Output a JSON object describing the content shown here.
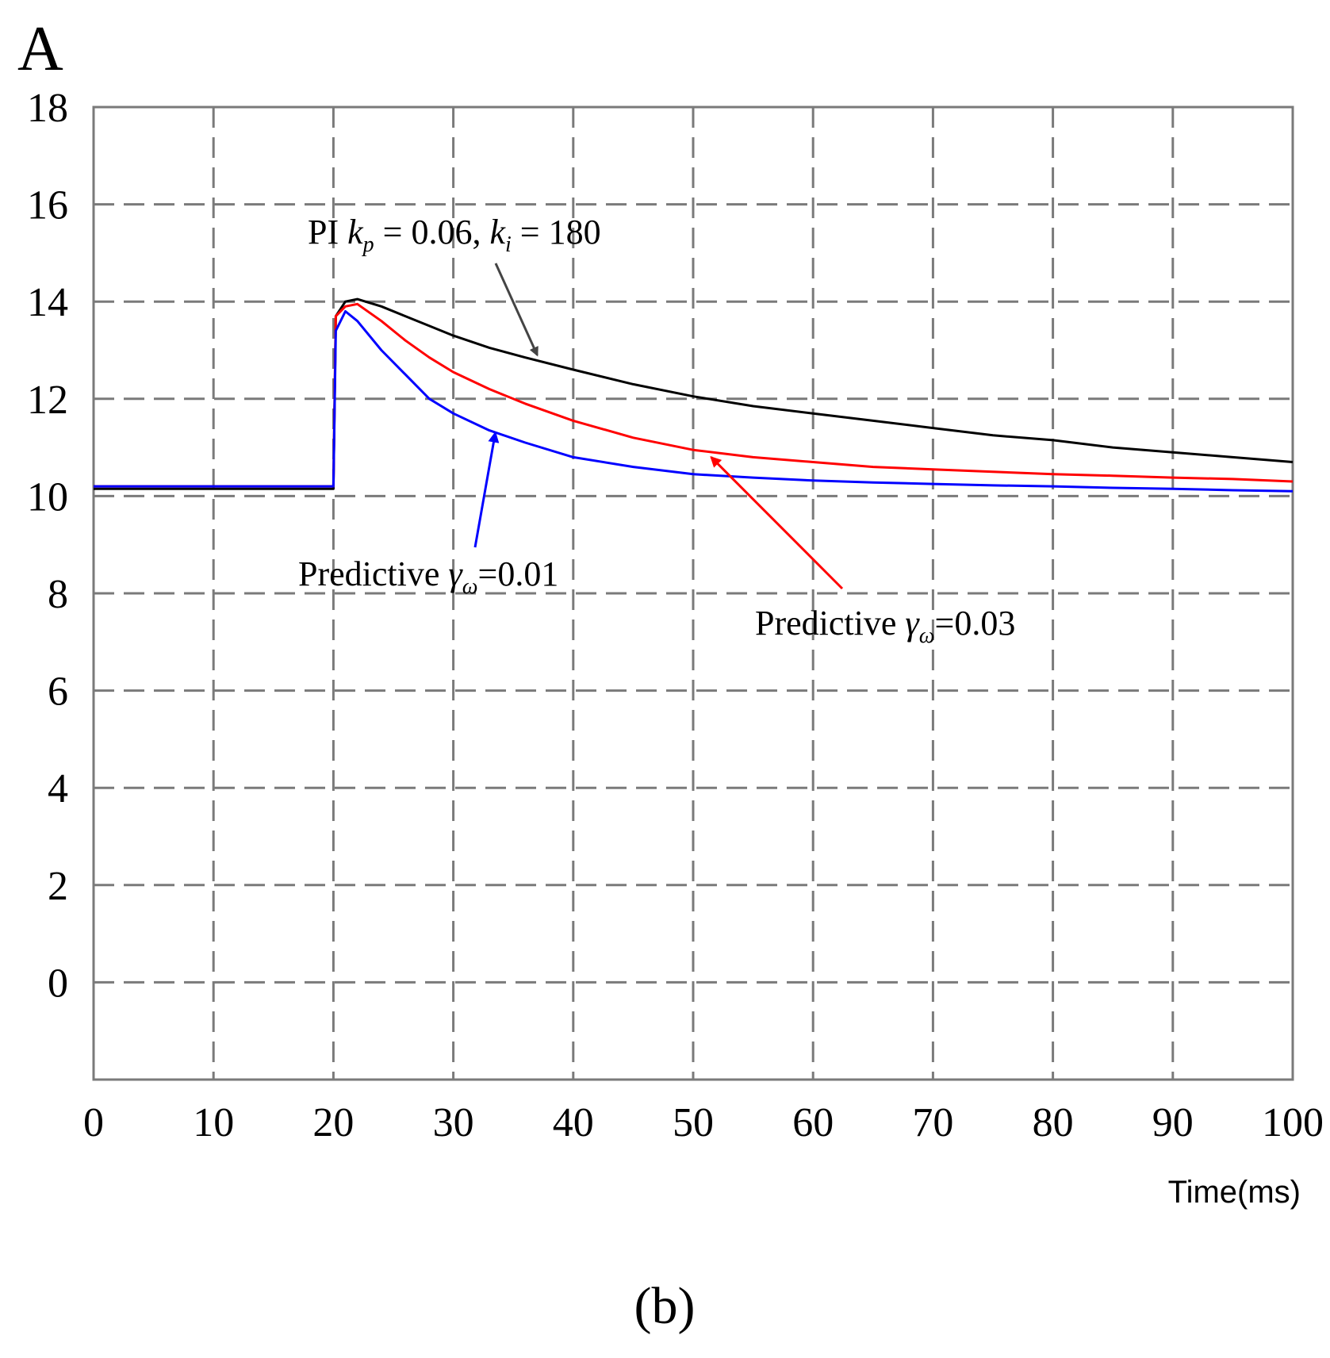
{
  "chart_data": {
    "type": "line",
    "panel_label": "(b)",
    "y_unit_label": "A",
    "xlabel": "Time(ms)",
    "ylabel": "",
    "xlim": [
      0,
      100
    ],
    "ylim": [
      -2,
      18
    ],
    "grid": true,
    "x_ticks": [
      "0",
      "10",
      "20",
      "30",
      "40",
      "50",
      "60",
      "70",
      "80",
      "90",
      "100"
    ],
    "y_ticks": [
      "0",
      "2",
      "4",
      "6",
      "8",
      "10",
      "12",
      "14",
      "16",
      "18"
    ],
    "series": [
      {
        "name": "PI",
        "color": "#000000",
        "x": [
          0,
          20,
          20.2,
          21,
          22,
          24,
          26,
          28,
          30,
          33,
          36,
          40,
          45,
          50,
          55,
          60,
          65,
          70,
          75,
          80,
          85,
          90,
          95,
          100
        ],
        "y": [
          10.15,
          10.15,
          13.7,
          14.0,
          14.05,
          13.9,
          13.7,
          13.5,
          13.3,
          13.05,
          12.85,
          12.6,
          12.3,
          12.05,
          11.85,
          11.7,
          11.55,
          11.4,
          11.25,
          11.15,
          11.0,
          10.9,
          10.8,
          10.7
        ]
      },
      {
        "name": "Predictive γω=0.03",
        "color": "#ff0000",
        "x": [
          0,
          20,
          20.2,
          21,
          22,
          24,
          26,
          28,
          30,
          33,
          36,
          40,
          45,
          50,
          55,
          60,
          65,
          70,
          75,
          80,
          85,
          90,
          95,
          100
        ],
        "y": [
          10.2,
          10.2,
          13.7,
          13.9,
          13.95,
          13.6,
          13.2,
          12.85,
          12.55,
          12.2,
          11.9,
          11.55,
          11.2,
          10.95,
          10.8,
          10.7,
          10.6,
          10.55,
          10.5,
          10.45,
          10.42,
          10.38,
          10.35,
          10.3
        ]
      },
      {
        "name": "Predictive γω=0.01",
        "color": "#0000ff",
        "x": [
          0,
          20,
          20.2,
          21,
          22,
          24,
          26,
          28,
          30,
          33,
          36,
          40,
          45,
          50,
          55,
          60,
          65,
          70,
          75,
          80,
          85,
          90,
          95,
          100
        ],
        "y": [
          10.2,
          10.2,
          13.4,
          13.8,
          13.6,
          13.0,
          12.5,
          12.0,
          11.7,
          11.35,
          11.1,
          10.8,
          10.6,
          10.45,
          10.38,
          10.32,
          10.28,
          10.25,
          10.22,
          10.2,
          10.17,
          10.15,
          10.12,
          10.1
        ]
      }
    ],
    "annotations": {
      "pi": {
        "prefix": "PI ",
        "k": "k",
        "p_sub": "p",
        "middle": " = 0.06, ",
        "i_sub": "i",
        "suffix": " = 180",
        "arrow_color": "#444444",
        "arrow_tip": [
          37,
          12.9
        ]
      },
      "pred001": {
        "prefix": "Predictive  ",
        "gamma": "γ",
        "sub": "ω",
        "suffix": "=0.01",
        "arrow_color": "#0000ff",
        "arrow_tip": [
          33.5,
          11.3
        ]
      },
      "pred003": {
        "prefix": "Predictive  ",
        "gamma": "γ",
        "sub": "ω",
        "suffix": "=0.03",
        "arrow_color": "#ff0000",
        "arrow_tip": [
          51.5,
          10.8
        ]
      }
    }
  }
}
